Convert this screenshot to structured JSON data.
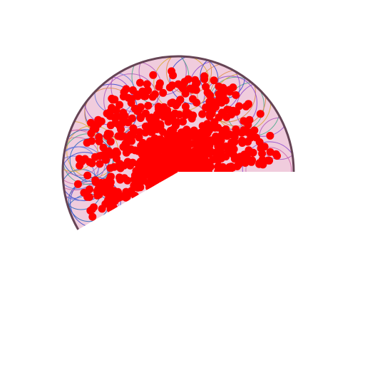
{
  "colors": {
    "background": "#ffffff",
    "sector_fill": "#f0ccdd",
    "sector_outline": "#664455",
    "dot": "#ff0000",
    "circle_palette": [
      "#3344cc",
      "#2266bb",
      "#8844cc",
      "#cc66aa",
      "#ddaa33",
      "#44aa88",
      "#6677dd",
      "#aa55bb",
      "#dd8844"
    ]
  },
  "figure": {
    "shape": "circular-sector",
    "sweep_degrees": 210,
    "dot_count": 900,
    "outline_circle_count": 40
  }
}
